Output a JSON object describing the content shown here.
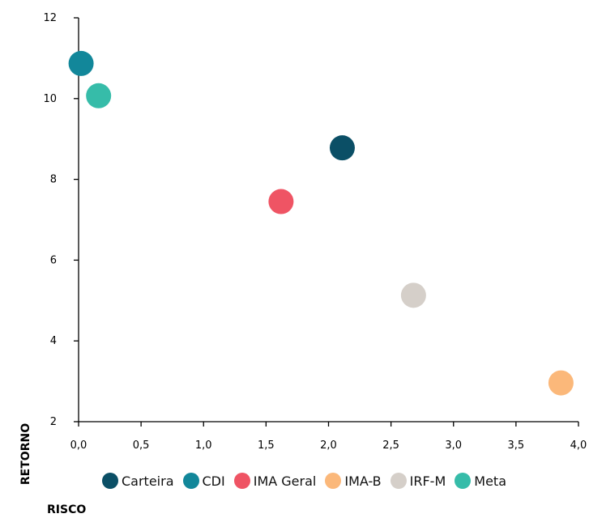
{
  "chart_data": {
    "type": "scatter",
    "xlabel": "RISCO",
    "ylabel": "RETORNO",
    "xlim": [
      0,
      4
    ],
    "ylim": [
      2,
      12
    ],
    "x_ticks": [
      "0,0",
      "0,5",
      "1,0",
      "1,5",
      "2,0",
      "2,5",
      "3,0",
      "3,5",
      "4,0"
    ],
    "y_ticks": [
      "2",
      "4",
      "6",
      "8",
      "10",
      "12"
    ],
    "grid": false,
    "legend_position": "bottom",
    "series": [
      {
        "name": "Carteira",
        "color": "#0b4f66",
        "x": 2.11,
        "y": 8.78
      },
      {
        "name": "CDI",
        "color": "#12879a",
        "x": 0.02,
        "y": 10.87
      },
      {
        "name": "IMA Geral",
        "color": "#ef5464",
        "x": 1.62,
        "y": 7.45
      },
      {
        "name": "IMA-B",
        "color": "#fbb87a",
        "x": 3.86,
        "y": 2.96
      },
      {
        "name": "IRF-M",
        "color": "#d5cfc9",
        "x": 2.68,
        "y": 5.13
      },
      {
        "name": "Meta",
        "color": "#36bca9",
        "x": 0.16,
        "y": 10.07
      }
    ]
  }
}
